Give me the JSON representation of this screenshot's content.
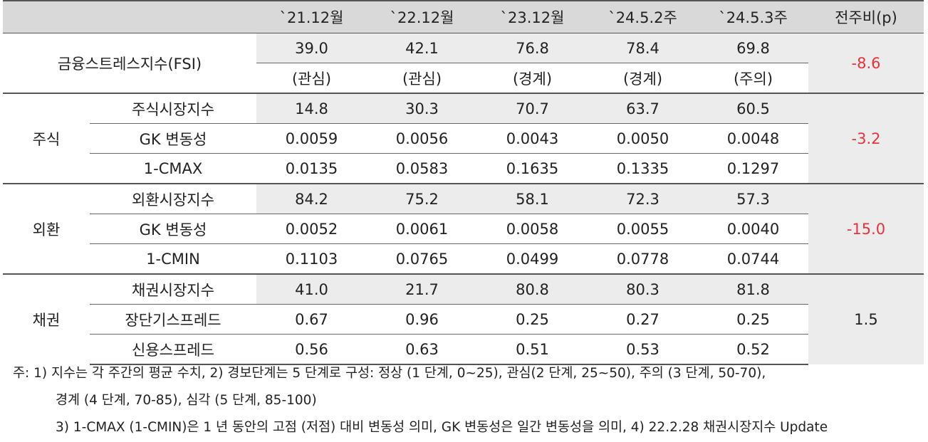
{
  "header": {
    "blank": "",
    "cols": [
      "`21.12월",
      "`22.12월",
      "`23.12월",
      "`24.5.2주",
      "`24.5.3주"
    ],
    "change": "전주비(p)"
  },
  "fsi": {
    "label": "금융스트레스지수(FSI)",
    "values": [
      "39.0",
      "42.1",
      "76.8",
      "78.4",
      "69.8"
    ],
    "levels": [
      "(관심)",
      "(관심)",
      "(경계)",
      "(경계)",
      "(주의)"
    ],
    "change": "-8.6"
  },
  "groups": [
    {
      "name": "주식",
      "change": "-3.2",
      "rows": [
        {
          "label": "주식시장지수",
          "values": [
            "14.8",
            "30.3",
            "70.7",
            "63.7",
            "60.5"
          ]
        },
        {
          "label": "GK 변동성",
          "values": [
            "0.0059",
            "0.0056",
            "0.0043",
            "0.0050",
            "0.0048"
          ]
        },
        {
          "label": "1-CMAX",
          "values": [
            "0.0135",
            "0.0583",
            "0.1635",
            "0.1335",
            "0.1297"
          ]
        }
      ]
    },
    {
      "name": "외환",
      "change": "-15.0",
      "rows": [
        {
          "label": "외환시장지수",
          "values": [
            "84.2",
            "75.2",
            "58.1",
            "72.3",
            "57.3"
          ]
        },
        {
          "label": "GK 변동성",
          "values": [
            "0.0052",
            "0.0061",
            "0.0058",
            "0.0055",
            "0.0040"
          ]
        },
        {
          "label": "1-CMIN",
          "values": [
            "0.1103",
            "0.0765",
            "0.0499",
            "0.0778",
            "0.0744"
          ]
        }
      ]
    },
    {
      "name": "채권",
      "change": "1.5",
      "rows": [
        {
          "label": "채권시장지수",
          "values": [
            "41.0",
            "21.7",
            "80.8",
            "80.3",
            "81.8"
          ]
        },
        {
          "label": "장단기스프레드",
          "values": [
            "0.67",
            "0.96",
            "0.25",
            "0.27",
            "0.25"
          ]
        },
        {
          "label": "신용스프레드",
          "values": [
            "0.56",
            "0.63",
            "0.51",
            "0.53",
            "0.52"
          ]
        }
      ]
    }
  ],
  "notes": [
    "주: 1) 지수는 각 주간의 평균 수치, 2) 경보단계는 5 단계로 구성: 정상 (1 단계, 0~25), 관심(2 단계, 25~50), 주의 (3 단계, 50-70),",
    "경계 (4 단계, 70-85), 심각 (5 단계, 85-100)",
    "3) 1-CMAX (1-CMIN)은 1 년 동안의 고점 (저점) 대비 변동성 의미, GK 변동성은 일간 변동성을 의미, 4) 22.2.28 채권시장지수 Update"
  ]
}
